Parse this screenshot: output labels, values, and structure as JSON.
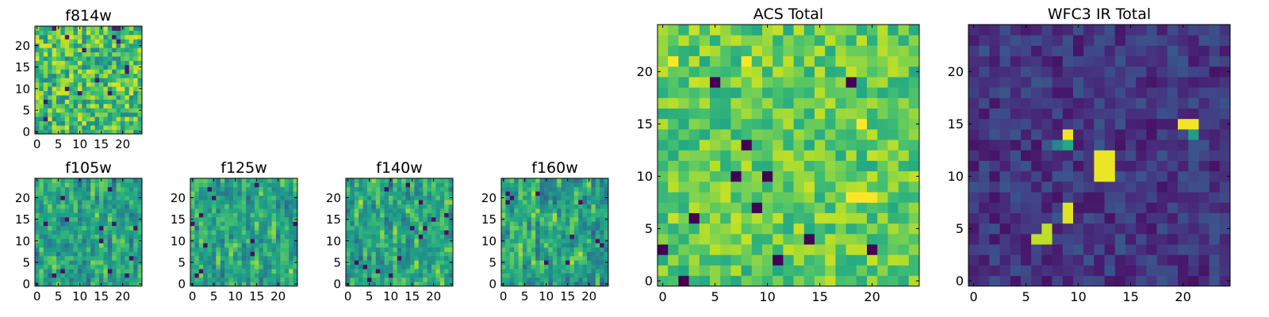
{
  "figure": {
    "background": "#ffffff"
  },
  "chart_data": [
    {
      "id": "f814w",
      "type": "heatmap",
      "title": "f814w",
      "grid": [
        25,
        25
      ],
      "xlim": [
        0,
        24
      ],
      "ylim": [
        0,
        24
      ],
      "xticks": [
        "0",
        "5",
        "10",
        "15",
        "20"
      ],
      "yticks": [
        "0",
        "5",
        "10",
        "15",
        "20"
      ],
      "colormap": "viridis",
      "value_range": [
        0,
        1
      ],
      "seed": 11,
      "style": "noise"
    },
    {
      "id": "f105w",
      "type": "heatmap",
      "title": "f105w",
      "grid": [
        25,
        25
      ],
      "xlim": [
        0,
        24
      ],
      "ylim": [
        0,
        24
      ],
      "xticks": [
        "0",
        "5",
        "10",
        "15",
        "20"
      ],
      "yticks": [
        "0",
        "5",
        "10",
        "15",
        "20"
      ],
      "colormap": "viridis",
      "value_range": [
        0,
        1
      ],
      "seed": 23,
      "style": "smooth"
    },
    {
      "id": "f125w",
      "type": "heatmap",
      "title": "f125w",
      "grid": [
        25,
        25
      ],
      "xlim": [
        0,
        24
      ],
      "ylim": [
        0,
        24
      ],
      "xticks": [
        "0",
        "5",
        "10",
        "15",
        "20"
      ],
      "yticks": [
        "0",
        "5",
        "10",
        "15",
        "20"
      ],
      "colormap": "viridis",
      "value_range": [
        0,
        1
      ],
      "seed": 37,
      "style": "smooth"
    },
    {
      "id": "f140w",
      "type": "heatmap",
      "title": "f140w",
      "grid": [
        25,
        25
      ],
      "xlim": [
        0,
        24
      ],
      "ylim": [
        0,
        24
      ],
      "xticks": [
        "0",
        "5",
        "10",
        "15",
        "20"
      ],
      "yticks": [
        "0",
        "5",
        "10",
        "15",
        "20"
      ],
      "colormap": "viridis",
      "value_range": [
        0,
        1
      ],
      "seed": 41,
      "style": "smooth"
    },
    {
      "id": "f160w",
      "type": "heatmap",
      "title": "f160w",
      "grid": [
        25,
        25
      ],
      "xlim": [
        0,
        24
      ],
      "ylim": [
        0,
        24
      ],
      "xticks": [
        "0",
        "5",
        "10",
        "15",
        "20"
      ],
      "yticks": [
        "0",
        "5",
        "10",
        "15",
        "20"
      ],
      "colormap": "viridis",
      "value_range": [
        0,
        1
      ],
      "seed": 53,
      "style": "smooth"
    },
    {
      "id": "acs_total",
      "type": "heatmap",
      "title": "ACS Total",
      "grid": [
        25,
        25
      ],
      "xlim": [
        0,
        24
      ],
      "ylim": [
        0,
        24
      ],
      "xticks": [
        "0",
        "5",
        "10",
        "15",
        "20"
      ],
      "yticks": [
        "0",
        "5",
        "10",
        "15",
        "20"
      ],
      "colormap": "viridis",
      "value_range": [
        0,
        1
      ],
      "seed": 67,
      "style": "bright",
      "dark_cells": [
        [
          2,
          0
        ],
        [
          0,
          3
        ],
        [
          3,
          6
        ],
        [
          5,
          19
        ],
        [
          7,
          10
        ],
        [
          8,
          13
        ],
        [
          10,
          10
        ],
        [
          14,
          4
        ],
        [
          9,
          7
        ],
        [
          20,
          3
        ],
        [
          11,
          2
        ],
        [
          18,
          19
        ]
      ],
      "bright_cells": [
        [
          18,
          8
        ],
        [
          19,
          8
        ],
        [
          20,
          8
        ],
        [
          19,
          15
        ],
        [
          8,
          21
        ],
        [
          1,
          21
        ]
      ]
    },
    {
      "id": "wfc3_ir_total",
      "type": "heatmap",
      "title": "WFC3 IR Total",
      "grid": [
        25,
        25
      ],
      "xlim": [
        0,
        24
      ],
      "ylim": [
        0,
        24
      ],
      "xticks": [
        "0",
        "5",
        "10",
        "15",
        "20"
      ],
      "yticks": [
        "0",
        "5",
        "10",
        "15",
        "20"
      ],
      "colormap": "viridis",
      "value_range": [
        0,
        1
      ],
      "seed": 79,
      "style": "dark",
      "sources": [
        {
          "cells": [
            [
              20,
              15
            ],
            [
              21,
              15
            ]
          ],
          "value": 0.98
        },
        {
          "cells": [
            [
              21,
              14
            ]
          ],
          "value": 0.55
        },
        {
          "cells": [
            [
              9,
              14
            ]
          ],
          "value": 0.98
        },
        {
          "cells": [
            [
              9,
              13
            ]
          ],
          "value": 0.6
        },
        {
          "cells": [
            [
              12,
              12
            ],
            [
              13,
              12
            ],
            [
              12,
              11
            ],
            [
              13,
              11
            ],
            [
              12,
              10
            ],
            [
              13,
              10
            ]
          ],
          "value": 0.97
        },
        {
          "cells": [
            [
              9,
              7
            ],
            [
              9,
              6
            ]
          ],
          "value": 0.95
        },
        {
          "cells": [
            [
              6,
              4
            ],
            [
              7,
              4
            ],
            [
              7,
              5
            ]
          ],
          "value": 0.9
        },
        {
          "cells": [
            [
              8,
              13
            ]
          ],
          "value": 0.45
        }
      ]
    }
  ]
}
